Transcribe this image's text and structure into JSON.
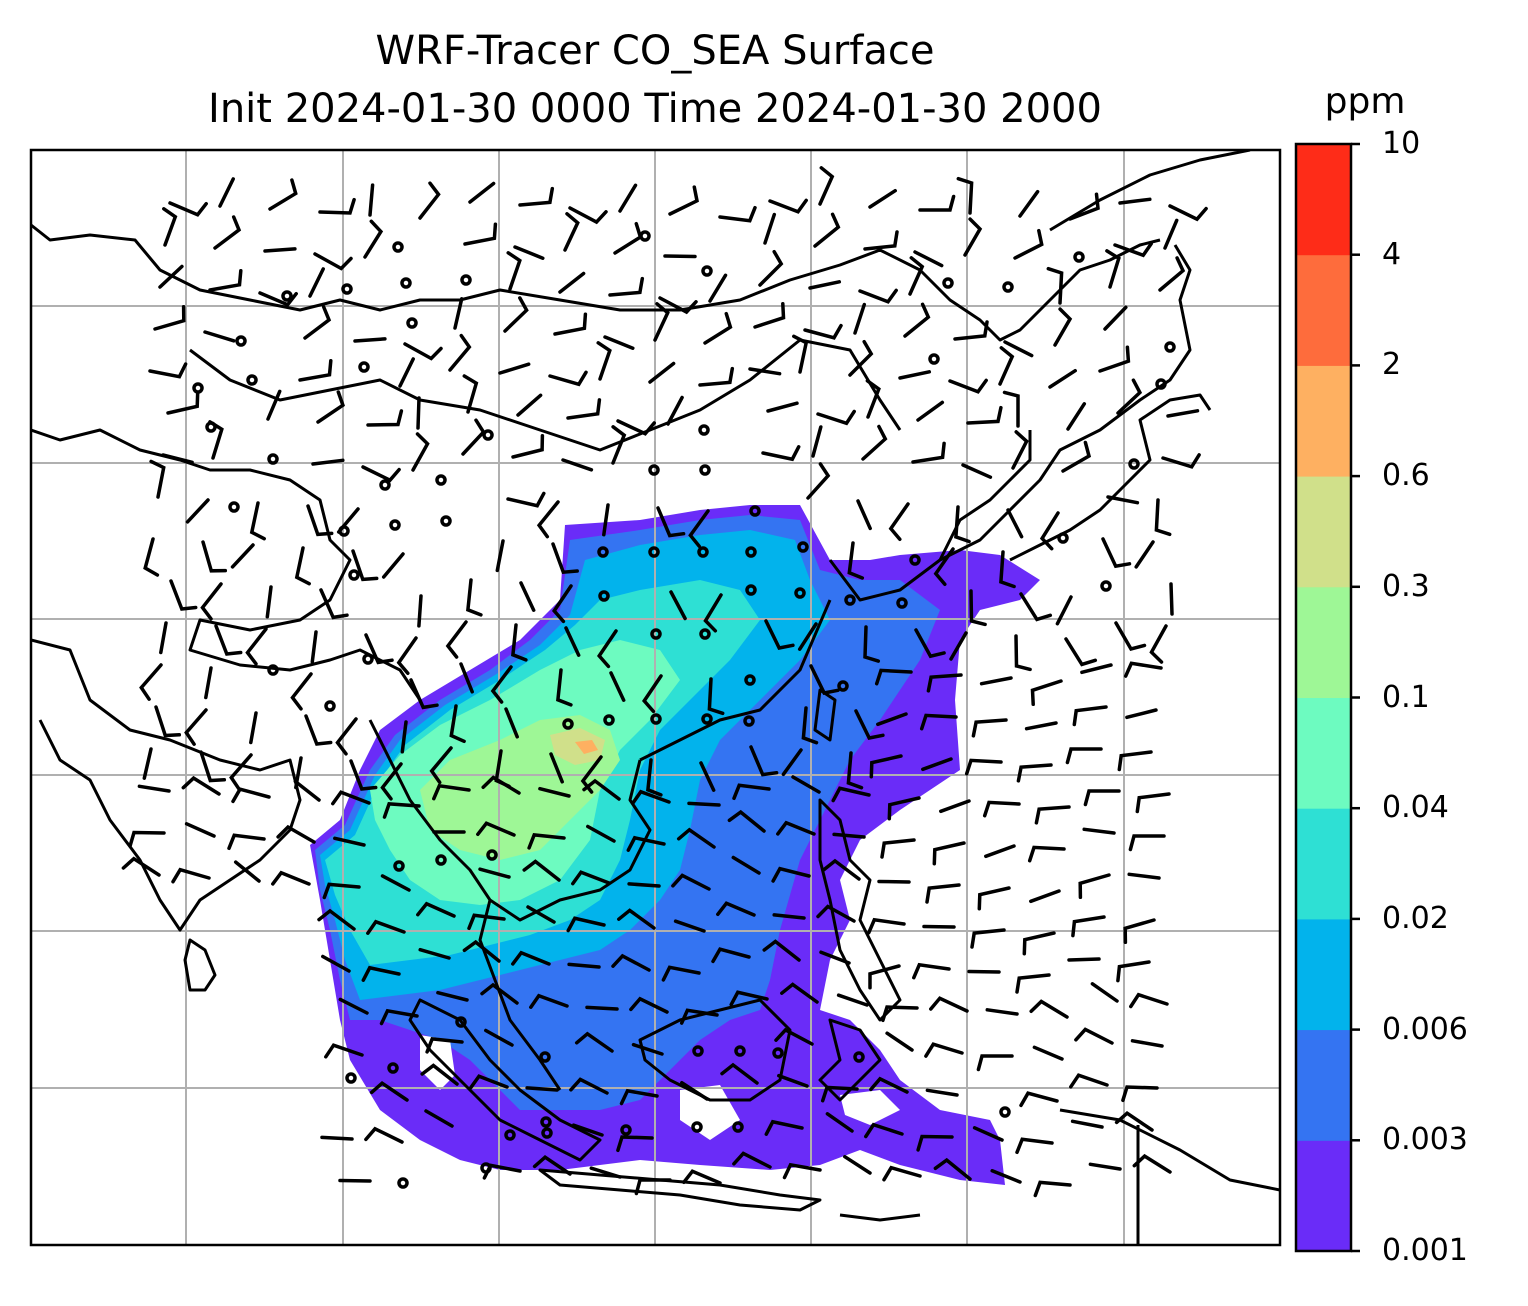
{
  "title": {
    "line1": "WRF-Tracer CO_SEA Surface",
    "line2": "Init 2024-01-30 0000 Time 2024-01-30 2000"
  },
  "colorbar": {
    "unit": "ppm",
    "levels": [
      "0.001",
      "0.003",
      "0.006",
      "0.02",
      "0.04",
      "0.1",
      "0.3",
      "0.6",
      "2",
      "4",
      "10"
    ],
    "colors": [
      "#6a2cf8",
      "#3474f2",
      "#02b3ec",
      "#2ee0d4",
      "#6dfbc0",
      "#9ef796",
      "#d0e08a",
      "#feb061",
      "#fe6c3c",
      "#fe2c18"
    ]
  },
  "map": {
    "land_outline_color": "#000000",
    "gridline_color": "#b0b0b0",
    "field_name": "CO_SEA tracer concentration",
    "wind_symbols": "wind barbs with calm circles"
  }
}
